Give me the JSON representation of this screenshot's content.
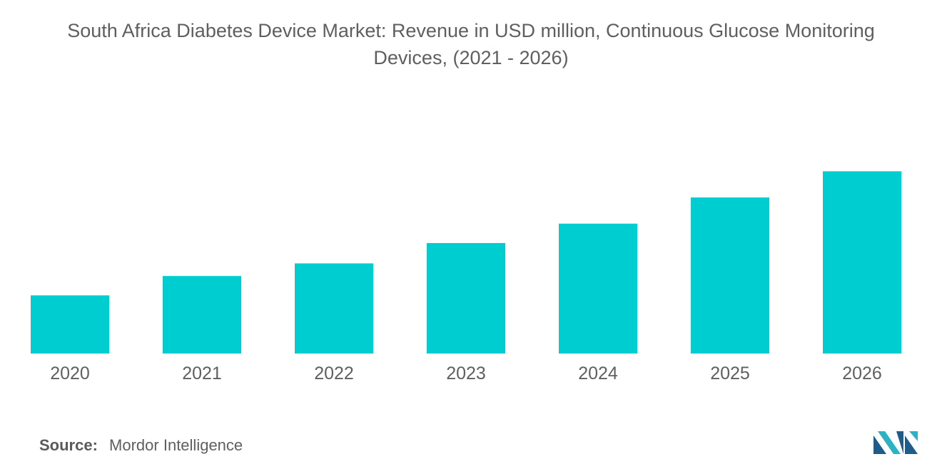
{
  "chart_data": {
    "type": "bar",
    "title": "South Africa Diabetes Device Market: Revenue in USD million, Continuous Glucose Monitoring Devices, (2021 - 2026)",
    "categories": [
      "2020",
      "2021",
      "2022",
      "2023",
      "2024",
      "2025",
      "2026"
    ],
    "values": [
      30,
      40,
      46.5,
      57,
      67,
      80.5,
      94
    ],
    "xlabel": "",
    "ylabel": "",
    "ylim": [
      0,
      100
    ],
    "grid": false,
    "bar_color": "#00cdd0"
  },
  "footer": {
    "source_label": "Source:",
    "source_value": "Mordor Intelligence"
  },
  "logo": {
    "icon": "mordor-intelligence-logo-icon",
    "color_dark": "#1f5c8b",
    "color_light": "#2ab3c5"
  }
}
